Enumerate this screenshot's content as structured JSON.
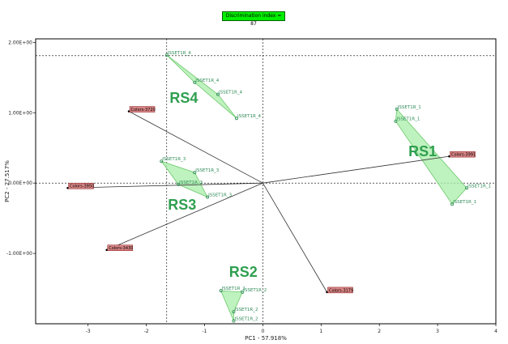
{
  "badge": "Discrimination index = 87",
  "chart_data": {
    "type": "scatter",
    "title": "",
    "xlabel": "PC1 - 57.918%",
    "ylabel": "PC2 - 27.517%",
    "xlim": [
      -3.9,
      4.0
    ],
    "ylim": [
      -2.0,
      2.05
    ],
    "xticks": [
      -3,
      -2,
      -1,
      0,
      1,
      2,
      3,
      4
    ],
    "yticks": [
      {
        "v": 2.0,
        "label": "2.00E+00"
      },
      {
        "v": 1.0,
        "label": "1.00E+00"
      },
      {
        "v": 0.0,
        "label": "0.00E+00"
      },
      {
        "v": -1.0,
        "label": "-1.00E+00"
      }
    ],
    "reference_lines": {
      "x": -1.65,
      "y": 1.81
    },
    "colors": {
      "hull_fill": "#a8eea8",
      "hull_stroke": "#6cc86c",
      "label_bg": "#d88484",
      "label_border": "#8b1a1a",
      "group_text": "#2f9f50"
    },
    "groups": [
      {
        "name": "RS1",
        "label_at": [
          2.5,
          0.38
        ],
        "points": [
          {
            "x": 2.3,
            "y": 1.05,
            "label": "ISSET1R_1"
          },
          {
            "x": 2.28,
            "y": 0.88,
            "label": "ISSET1R_1"
          },
          {
            "x": 3.5,
            "y": -0.07,
            "label": "ISSET1R_1"
          },
          {
            "x": 3.25,
            "y": -0.3,
            "label": "ISSET1R_1"
          }
        ]
      },
      {
        "name": "RS2",
        "label_at": [
          -0.58,
          -1.33
        ],
        "points": [
          {
            "x": -0.72,
            "y": -1.53,
            "label": "ISSET1R_2"
          },
          {
            "x": -0.35,
            "y": -1.55,
            "label": "ISSET1R_2"
          },
          {
            "x": -0.5,
            "y": -1.83,
            "label": "ISSET1R_2"
          },
          {
            "x": -0.5,
            "y": -1.96,
            "label": "ISSET1R_2"
          }
        ]
      },
      {
        "name": "RS3",
        "label_at": [
          -1.63,
          -0.38
        ],
        "points": [
          {
            "x": -1.74,
            "y": 0.31,
            "label": "ISSET1R_3"
          },
          {
            "x": -1.17,
            "y": 0.15,
            "label": "ISSET1R_3"
          },
          {
            "x": -1.45,
            "y": -0.02,
            "label": "ISSET1R_3"
          },
          {
            "x": -0.95,
            "y": -0.2,
            "label": "ISSET1R_3"
          }
        ]
      },
      {
        "name": "RS4",
        "label_at": [
          -1.6,
          1.14
        ],
        "points": [
          {
            "x": -1.65,
            "y": 1.82,
            "label": "ISSET1R_4"
          },
          {
            "x": -1.17,
            "y": 1.43,
            "label": "ISSET1R_4"
          },
          {
            "x": -0.77,
            "y": 1.26,
            "label": "ISSET1R_4"
          },
          {
            "x": -0.45,
            "y": 0.92,
            "label": "ISSET1R_4"
          }
        ]
      }
    ],
    "variables": [
      {
        "label": "Colors-3720",
        "x": -2.3,
        "y": 1.02
      },
      {
        "label": "Colors-3950",
        "x": -3.35,
        "y": -0.07
      },
      {
        "label": "Colors-3430",
        "x": -2.68,
        "y": -0.95
      },
      {
        "label": "Colors-3179",
        "x": 1.1,
        "y": -1.55
      },
      {
        "label": "Colors-3991",
        "x": 3.2,
        "y": 0.38
      }
    ]
  }
}
